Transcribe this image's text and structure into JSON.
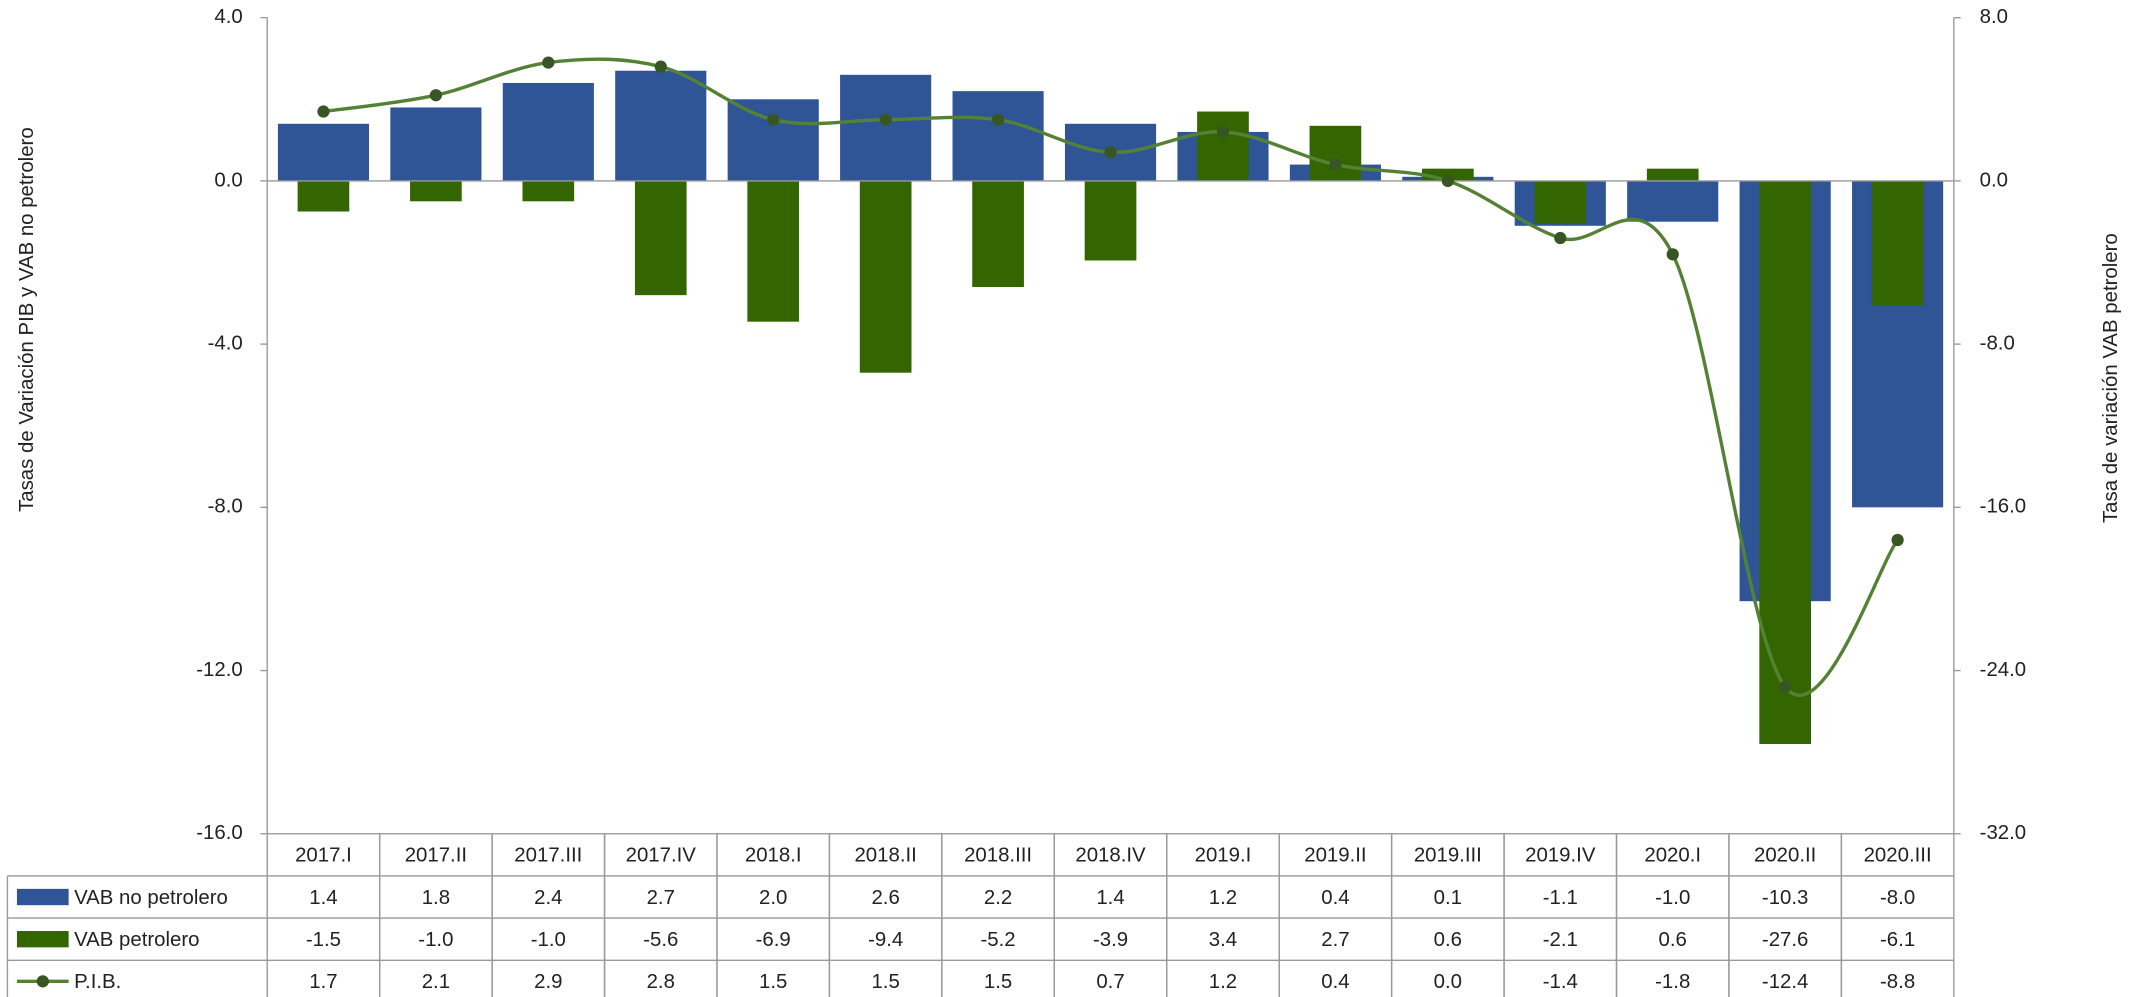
{
  "chart_data": {
    "type": "bar",
    "y_label": "Tasas de Variación PIB y VAB no petrolero",
    "y2_label": "Tasa de variación VAB petrolero",
    "categories": [
      "2017.I",
      "2017.II",
      "2017.III",
      "2017.IV",
      "2018.I",
      "2018.II",
      "2018.III",
      "2018.IV",
      "2019.I",
      "2019.II",
      "2019.III",
      "2019.IV",
      "2020.I",
      "2020.II",
      "2020.III"
    ],
    "series": [
      {
        "name": "VAB no petrolero",
        "color": "#2f5597",
        "type": "bar",
        "values": [
          1.4,
          1.8,
          2.4,
          2.7,
          2.0,
          2.6,
          2.2,
          1.4,
          1.2,
          0.4,
          0.1,
          -1.1,
          -1.0,
          -10.3,
          -8.0
        ],
        "value_labels": [
          "1.4",
          "1.8",
          "2.4",
          "2.7",
          "2.0",
          "2.6",
          "2.2",
          "1.4",
          "1.2",
          "0.4",
          "0.1",
          "-1.1",
          "-1.0",
          "-10.3",
          "-8.0"
        ]
      },
      {
        "name": "VAB petrolero",
        "color": "#336600",
        "type": "bar",
        "axis": "y2",
        "values": [
          -1.5,
          -1.0,
          -1.0,
          -5.6,
          -6.9,
          -9.4,
          -5.2,
          -3.9,
          3.4,
          2.7,
          0.6,
          -2.1,
          0.6,
          -27.6,
          -6.1
        ],
        "value_labels": [
          "-1.5",
          "-1.0",
          "-1.0",
          "-5.6",
          "-6.9",
          "-9.4",
          "-5.2",
          "-3.9",
          "3.4",
          "2.7",
          "0.6",
          "-2.1",
          "0.6",
          "-27.6",
          "-6.1"
        ]
      },
      {
        "name": "P.I.B.",
        "color": "#548235",
        "type": "line",
        "values": [
          1.7,
          2.1,
          2.9,
          2.8,
          1.5,
          1.5,
          1.5,
          0.7,
          1.2,
          0.4,
          0.0,
          -1.4,
          -1.8,
          -12.4,
          -8.8
        ],
        "value_labels": [
          "1.7",
          "2.1",
          "2.9",
          "2.8",
          "1.5",
          "1.5",
          "1.5",
          "0.7",
          "1.2",
          "0.4",
          "0.0",
          "-1.4",
          "-1.8",
          "-12.4",
          "-8.8"
        ]
      }
    ],
    "ylim": [
      -16,
      4
    ],
    "yticks": [
      {
        "value": -16,
        "label": "-16.0"
      },
      {
        "value": -12,
        "label": "-12.0"
      },
      {
        "value": -8,
        "label": "-8.0"
      },
      {
        "value": -4,
        "label": "-4.0"
      },
      {
        "value": 0,
        "label": "0.0"
      },
      {
        "value": 4,
        "label": "4.0"
      }
    ],
    "y2lim": [
      -32,
      8
    ],
    "y2ticks": [
      {
        "value": -32,
        "label": "-32.0"
      },
      {
        "value": -24,
        "label": "-24.0"
      },
      {
        "value": -16,
        "label": "-16.0"
      },
      {
        "value": -8,
        "label": "-8.0"
      },
      {
        "value": 0,
        "label": "0.0"
      },
      {
        "value": 8,
        "label": "8.0"
      }
    ],
    "data_table": true
  }
}
